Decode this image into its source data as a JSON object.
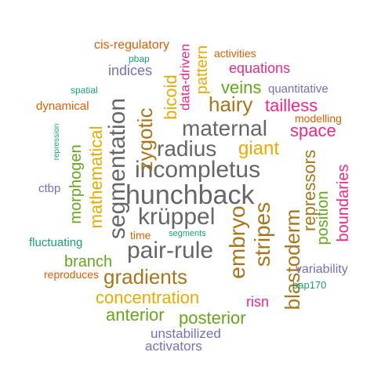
{
  "palette": {
    "teal": "#1b9e77",
    "orange": "#d95f02",
    "purple": "#7570b3",
    "magenta": "#e7298a",
    "green": "#66a61e",
    "gold": "#e6ab02",
    "brown": "#a6761d",
    "gray": "#666666"
  },
  "words": {
    "hunchback": "hunchback",
    "segmentation": "segmentation",
    "incompletus": "incompletus",
    "krppel": "krüppel",
    "pairrule": "pair-rule",
    "maternal": "maternal",
    "radius": "radius",
    "zygotic": "zygotic",
    "embryo": "embryo",
    "stripes": "stripes",
    "blastoderm": "blastoderm",
    "gradients": "gradients",
    "mathematical": "mathematical",
    "concentration": "concentration",
    "repressors": "repressors",
    "hairy": "hairy",
    "giant": "giant",
    "morphogen": "morphogen",
    "boundaries": "boundaries",
    "bicoid": "bicoid",
    "pattern": "pattern",
    "veins": "veins",
    "tailless": "tailless",
    "space": "space",
    "anterior": "anterior",
    "posterior": "posterior",
    "branch": "branch",
    "position": "position",
    "equations": "equations",
    "datadriven": "data-driven",
    "indices": "indices",
    "unstabilized": "unstabilized",
    "activators": "activators",
    "variability": "variability",
    "risn": "risn",
    "cisregulatory": "cis-regulatory",
    "activities": "activities",
    "quantitative": "quantitative",
    "dynamical": "dynamical",
    "modelling": "modelling",
    "ctbp": "ctbp",
    "fluctuating": "fluctuating",
    "reproduces": "reproduces",
    "time": "time",
    "segments": "segments",
    "bap170": "bap170",
    "pbap": "pbap",
    "spatial": "spatial",
    "repression": "repression"
  }
}
